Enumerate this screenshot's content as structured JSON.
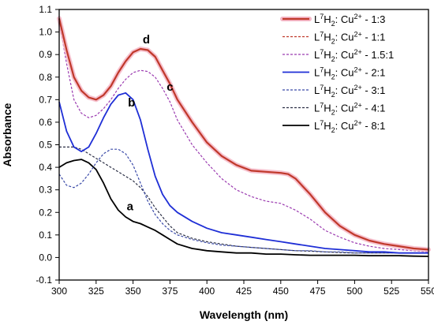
{
  "chart_data": {
    "type": "line",
    "xlabel": "Wavelength (nm)",
    "ylabel": "Absorbance",
    "xlim": [
      300,
      550
    ],
    "ylim": [
      -0.1,
      1.1
    ],
    "xticks": [
      300,
      325,
      350,
      375,
      400,
      425,
      450,
      475,
      500,
      525,
      550
    ],
    "yticks": [
      -0.1,
      0.0,
      0.1,
      0.2,
      0.3,
      0.4,
      0.5,
      0.6,
      0.7,
      0.8,
      0.9,
      1.0,
      1.1
    ],
    "ytick_labels": [
      "-0.1",
      "0.0",
      "0.1",
      "0.2",
      "0.3",
      "0.4",
      "0.5",
      "0.6",
      "0.7",
      "0.8",
      "0.9",
      "1.0",
      "1.1"
    ],
    "grid": false,
    "legend_position": "top-right",
    "series": [
      {
        "name_parts": [
          "L",
          "7",
          "H",
          "2",
          ": Cu",
          "2+",
          " - 1:3"
        ],
        "color": "#c0392b",
        "style": "solid",
        "width": 2.2,
        "halo": true,
        "x": [
          300,
          305,
          310,
          315,
          320,
          325,
          330,
          335,
          340,
          345,
          350,
          355,
          360,
          365,
          370,
          375,
          380,
          390,
          400,
          410,
          420,
          430,
          440,
          450,
          455,
          460,
          470,
          480,
          490,
          500,
          510,
          520,
          530,
          540,
          550
        ],
        "y": [
          1.06,
          0.92,
          0.8,
          0.74,
          0.71,
          0.7,
          0.72,
          0.76,
          0.82,
          0.87,
          0.91,
          0.925,
          0.92,
          0.89,
          0.83,
          0.77,
          0.7,
          0.6,
          0.51,
          0.45,
          0.41,
          0.385,
          0.38,
          0.375,
          0.37,
          0.35,
          0.28,
          0.2,
          0.14,
          0.1,
          0.075,
          0.06,
          0.05,
          0.04,
          0.035
        ]
      },
      {
        "name_parts": [
          "L",
          "7",
          "H",
          "2",
          ": Cu",
          "2+",
          " - 1:1"
        ],
        "color": "#c0392b",
        "style": "dashed",
        "width": 1.2,
        "halo": false,
        "x": [
          300,
          305,
          310,
          315,
          320,
          325,
          330,
          335,
          340,
          345,
          350,
          355,
          360,
          365,
          370,
          375,
          380,
          390,
          400,
          410,
          420,
          430,
          440,
          450,
          455,
          460,
          470,
          480,
          490,
          500,
          510,
          520,
          530,
          540,
          550
        ],
        "y": [
          1.06,
          0.92,
          0.8,
          0.74,
          0.71,
          0.7,
          0.72,
          0.76,
          0.82,
          0.87,
          0.91,
          0.925,
          0.92,
          0.89,
          0.83,
          0.77,
          0.7,
          0.6,
          0.51,
          0.45,
          0.41,
          0.385,
          0.38,
          0.375,
          0.37,
          0.35,
          0.28,
          0.2,
          0.14,
          0.1,
          0.075,
          0.06,
          0.05,
          0.04,
          0.035
        ]
      },
      {
        "name_parts": [
          "L",
          "7",
          "H",
          "2",
          ": Cu",
          "2+",
          " - 1.5:1"
        ],
        "color": "#9b3bb0",
        "style": "dashed",
        "width": 1.2,
        "halo": false,
        "x": [
          300,
          305,
          310,
          315,
          320,
          325,
          330,
          335,
          340,
          345,
          350,
          355,
          360,
          365,
          370,
          375,
          380,
          390,
          400,
          410,
          420,
          430,
          440,
          450,
          460,
          470,
          480,
          490,
          500,
          510,
          520,
          530,
          540,
          550
        ],
        "y": [
          1.05,
          0.86,
          0.7,
          0.64,
          0.62,
          0.63,
          0.66,
          0.7,
          0.75,
          0.79,
          0.82,
          0.83,
          0.825,
          0.8,
          0.75,
          0.69,
          0.61,
          0.5,
          0.42,
          0.35,
          0.3,
          0.27,
          0.25,
          0.24,
          0.21,
          0.17,
          0.12,
          0.09,
          0.065,
          0.05,
          0.04,
          0.035,
          0.03,
          0.025
        ]
      },
      {
        "name_parts": [
          "L",
          "7",
          "H",
          "2",
          ": Cu",
          "2+",
          " - 2:1"
        ],
        "color": "#1f2fd6",
        "style": "solid",
        "width": 1.8,
        "halo": false,
        "x": [
          300,
          305,
          310,
          315,
          320,
          325,
          330,
          335,
          340,
          345,
          350,
          355,
          360,
          365,
          370,
          375,
          380,
          390,
          400,
          410,
          420,
          430,
          440,
          450,
          460,
          470,
          480,
          490,
          500,
          510,
          520,
          530,
          540,
          550
        ],
        "y": [
          0.69,
          0.56,
          0.49,
          0.47,
          0.49,
          0.55,
          0.62,
          0.68,
          0.72,
          0.73,
          0.7,
          0.61,
          0.48,
          0.36,
          0.28,
          0.23,
          0.2,
          0.16,
          0.13,
          0.11,
          0.1,
          0.09,
          0.08,
          0.07,
          0.06,
          0.05,
          0.04,
          0.035,
          0.03,
          0.025,
          0.025,
          0.02,
          0.02,
          0.02
        ]
      },
      {
        "name_parts": [
          "L",
          "7",
          "H",
          "2",
          ": Cu",
          "2+",
          " - 3:1"
        ],
        "color": "#3a4aa8",
        "style": "dashed",
        "width": 1.2,
        "halo": false,
        "x": [
          300,
          305,
          310,
          315,
          320,
          325,
          330,
          335,
          340,
          345,
          350,
          355,
          360,
          365,
          370,
          375,
          380,
          390,
          400,
          410,
          420,
          430,
          440,
          450,
          460,
          470,
          480,
          490,
          500,
          510,
          520,
          530,
          540,
          550
        ],
        "y": [
          0.37,
          0.32,
          0.31,
          0.33,
          0.37,
          0.42,
          0.46,
          0.48,
          0.48,
          0.46,
          0.41,
          0.33,
          0.25,
          0.19,
          0.15,
          0.12,
          0.1,
          0.08,
          0.065,
          0.055,
          0.05,
          0.045,
          0.04,
          0.035,
          0.03,
          0.03,
          0.025,
          0.025,
          0.02,
          0.02,
          0.02,
          0.02,
          0.02,
          0.02
        ]
      },
      {
        "name_parts": [
          "L",
          "7",
          "H",
          "2",
          ": Cu",
          "2+",
          " - 4:1"
        ],
        "color": "#2b2f45",
        "style": "dashed",
        "width": 1.2,
        "halo": false,
        "x": [
          300,
          305,
          310,
          315,
          320,
          325,
          330,
          335,
          340,
          345,
          350,
          355,
          360,
          365,
          370,
          375,
          380,
          390,
          400,
          410,
          420,
          430,
          440,
          450,
          460,
          470,
          480,
          490,
          500,
          510,
          520,
          530,
          540,
          550
        ],
        "y": [
          0.49,
          0.49,
          0.49,
          0.48,
          0.46,
          0.44,
          0.42,
          0.4,
          0.38,
          0.36,
          0.34,
          0.31,
          0.27,
          0.22,
          0.18,
          0.14,
          0.11,
          0.085,
          0.07,
          0.06,
          0.05,
          0.045,
          0.04,
          0.035,
          0.03,
          0.028,
          0.025,
          0.022,
          0.02,
          0.02,
          0.02,
          0.02,
          0.02,
          0.02
        ]
      },
      {
        "name_parts": [
          "L",
          "7",
          "H",
          "2",
          ": Cu",
          "2+",
          " - 8:1"
        ],
        "color": "#000000",
        "style": "solid",
        "width": 1.8,
        "halo": false,
        "x": [
          300,
          305,
          310,
          315,
          320,
          325,
          330,
          335,
          340,
          345,
          350,
          355,
          360,
          365,
          370,
          375,
          380,
          390,
          400,
          410,
          420,
          430,
          440,
          450,
          460,
          470,
          480,
          490,
          500,
          510,
          520,
          530,
          540,
          550
        ],
        "y": [
          0.4,
          0.42,
          0.43,
          0.435,
          0.42,
          0.39,
          0.33,
          0.26,
          0.21,
          0.18,
          0.16,
          0.15,
          0.135,
          0.12,
          0.1,
          0.08,
          0.06,
          0.04,
          0.03,
          0.025,
          0.02,
          0.02,
          0.015,
          0.015,
          0.012,
          0.01,
          0.01,
          0.01,
          0.01,
          0.008,
          0.008,
          0.008,
          0.006,
          0.005
        ]
      }
    ],
    "annotations": [
      {
        "text": "a",
        "x": 348,
        "y": 0.21
      },
      {
        "text": "b",
        "x": 349,
        "y": 0.67
      },
      {
        "text": "c",
        "x": 375,
        "y": 0.74
      },
      {
        "text": "d",
        "x": 359,
        "y": 0.95
      }
    ]
  }
}
